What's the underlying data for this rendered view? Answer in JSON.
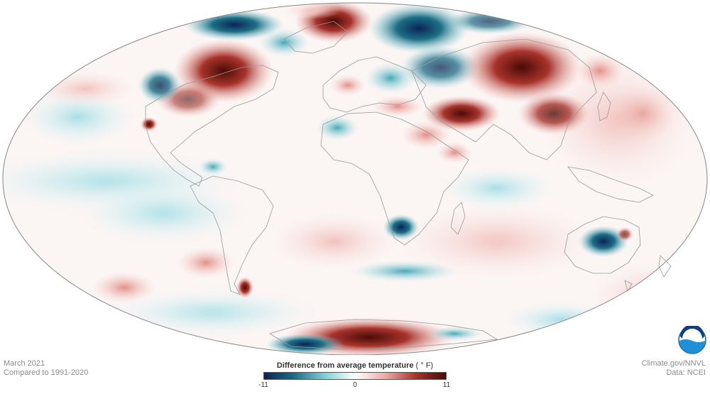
{
  "map": {
    "projection": "Mollweide",
    "variable": "temperature anomaly",
    "colors": {
      "strong_cold": "#0b2455",
      "cold": "#1d6e86",
      "cool": "#7fd0d8",
      "neutral": "#ffffff",
      "warm": "#eeaaa4",
      "hot": "#a8332c",
      "strong_hot": "#4a0b06",
      "coastline": "#9a9a9a",
      "outline": "#888888"
    }
  },
  "meta": {
    "date": "March 2021",
    "baseline": "Compared to 1991-2020",
    "site": "Climate.gov/NNVL",
    "source": "Data: NCEI"
  },
  "legend": {
    "title": "Difference from average temperature",
    "unit": "( ° F)",
    "min_label": "-11",
    "mid_label": "0",
    "max_label": "11",
    "min": -11,
    "max": 11
  },
  "logo": {
    "text": "NOAA"
  }
}
